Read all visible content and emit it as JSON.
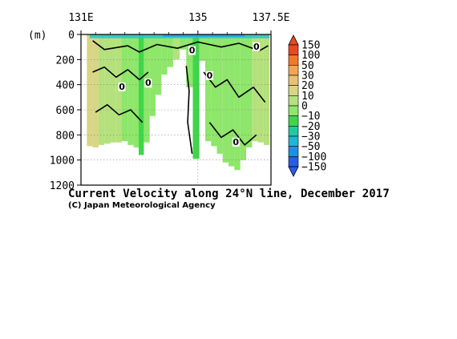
{
  "chart_data": {
    "type": "heatmap",
    "title": "Current Velocity along 24°N line, December 2017",
    "credit": "(C) Japan Meteorological Agency",
    "xlabel": "",
    "ylabel": "(m)",
    "x_ticks": [
      "131E",
      "135",
      "137.5E"
    ],
    "x_tick_values": [
      131.0,
      135.0,
      137.5
    ],
    "x_range": [
      131.0,
      137.5
    ],
    "y_ticks": [
      "0",
      "200",
      "400",
      "600",
      "800",
      "1000",
      "1200"
    ],
    "y_tick_values": [
      0,
      200,
      400,
      600,
      800,
      1000,
      1200
    ],
    "y_range": [
      0,
      1200
    ],
    "y_inverted": true,
    "grid": "dotted",
    "colorbar": {
      "labels": [
        "150",
        "100",
        "50",
        "30",
        "20",
        "10",
        "0",
        "−10",
        "−20",
        "−30",
        "−50",
        "−100",
        "−150"
      ],
      "colors": [
        "#e84a1e",
        "#f2792a",
        "#f4a553",
        "#e9c174",
        "#d9d584",
        "#b4e17c",
        "#8ee66a",
        "#3fd64a",
        "#20c9a0",
        "#1ab8d6",
        "#1e8fe8",
        "#2a5ce6"
      ],
      "placement": "right"
    },
    "contour_labels": [
      "0",
      "0",
      "0",
      "0",
      "0",
      "0"
    ],
    "contour_label_points": [
      [
        134.8,
        150
      ],
      [
        137.0,
        120
      ],
      [
        135.4,
        350
      ],
      [
        133.3,
        410
      ],
      [
        132.4,
        440
      ],
      [
        136.3,
        880
      ]
    ],
    "profile_columns": [
      {
        "x": 131.3,
        "bottom": 890,
        "mean": 12
      },
      {
        "x": 131.5,
        "bottom": 900,
        "mean": 14
      },
      {
        "x": 131.7,
        "bottom": 880,
        "mean": 10
      },
      {
        "x": 131.9,
        "bottom": 870,
        "mean": 8
      },
      {
        "x": 132.1,
        "bottom": 860,
        "mean": 5
      },
      {
        "x": 132.3,
        "bottom": 860,
        "mean": 6
      },
      {
        "x": 132.5,
        "bottom": 850,
        "mean": -4
      },
      {
        "x": 132.7,
        "bottom": 880,
        "mean": -8
      },
      {
        "x": 132.9,
        "bottom": 900,
        "mean": -6
      },
      {
        "x": 133.05,
        "bottom": 960,
        "mean": -10
      },
      {
        "x": 133.25,
        "bottom": 860,
        "mean": -5
      },
      {
        "x": 133.45,
        "bottom": 650,
        "mean": -3
      },
      {
        "x": 133.65,
        "bottom": 480,
        "mean": -2
      },
      {
        "x": 133.85,
        "bottom": 320,
        "mean": -4
      },
      {
        "x": 134.05,
        "bottom": 260,
        "mean": -3
      },
      {
        "x": 134.25,
        "bottom": 200,
        "mean": 2
      },
      {
        "x": 134.5,
        "bottom": 120,
        "mean": -5
      },
      {
        "x": 134.7,
        "bottom": 420,
        "mean": -6
      },
      {
        "x": 134.95,
        "bottom": 990,
        "mean": -12
      },
      {
        "x": 135.15,
        "bottom": 210,
        "mean": -4
      },
      {
        "x": 135.35,
        "bottom": 850,
        "mean": -6
      },
      {
        "x": 135.55,
        "bottom": 890,
        "mean": -8
      },
      {
        "x": 135.75,
        "bottom": 950,
        "mean": -5
      },
      {
        "x": 135.95,
        "bottom": 1020,
        "mean": -4
      },
      {
        "x": 136.15,
        "bottom": 1050,
        "mean": -3
      },
      {
        "x": 136.35,
        "bottom": 1080,
        "mean": -2
      },
      {
        "x": 136.55,
        "bottom": 1000,
        "mean": -6
      },
      {
        "x": 136.75,
        "bottom": 900,
        "mean": -3
      },
      {
        "x": 136.95,
        "bottom": 850,
        "mean": 4
      },
      {
        "x": 137.15,
        "bottom": 860,
        "mean": 6
      },
      {
        "x": 137.35,
        "bottom": 880,
        "mean": 3
      }
    ]
  }
}
